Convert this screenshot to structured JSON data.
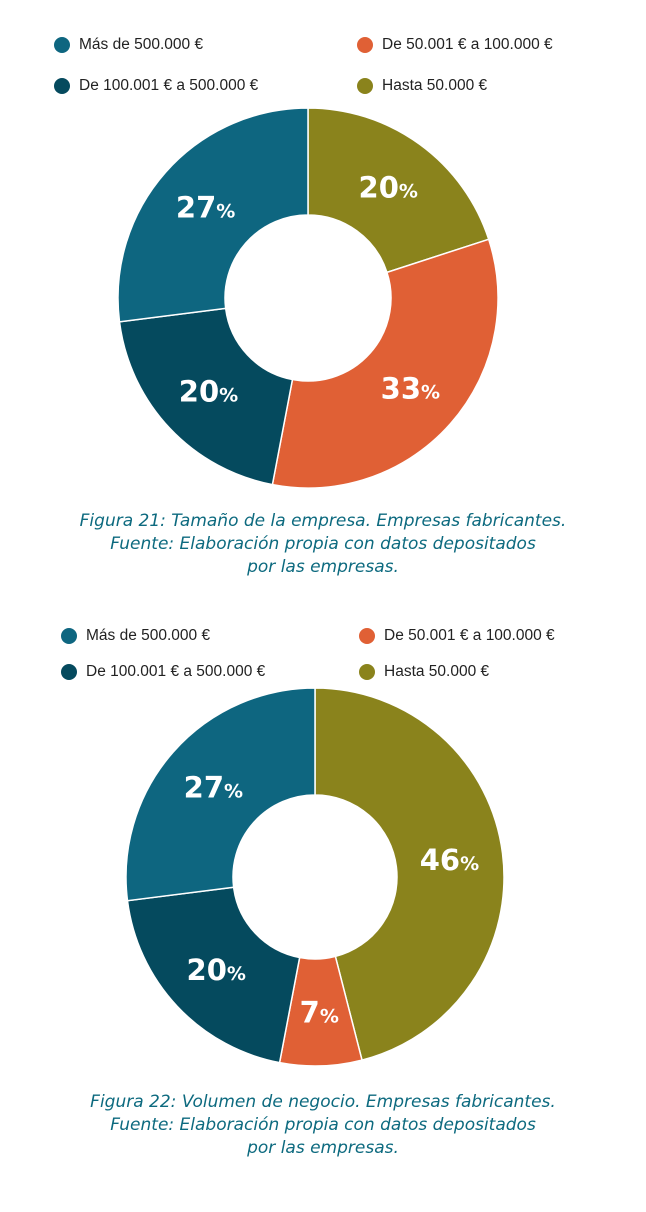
{
  "colors": {
    "mas_500k": "#0e6680",
    "de_100k_500k": "#054a5e",
    "de_50k_100k": "#e06035",
    "hasta_50k": "#8a831c"
  },
  "chart_data": [
    {
      "type": "pie",
      "donut": true,
      "legend": [
        {
          "label": "Más de 500.000 €",
          "color": "#0e6680"
        },
        {
          "label": "De 50.001 € a 100.000 €",
          "color": "#e06035"
        },
        {
          "label": "De 100.001 € a 500.000 €",
          "color": "#054a5e"
        },
        {
          "label": "Hasta 50.000 €",
          "color": "#8a831c"
        }
      ],
      "slices": [
        {
          "label": "Hasta 50.000 €",
          "value": 20,
          "display": "20",
          "color": "#8a831c"
        },
        {
          "label": "De 50.001 € a 100.000 €",
          "value": 33,
          "display": "33",
          "color": "#e06035"
        },
        {
          "label": "De 100.001 € a 500.000 €",
          "value": 20,
          "display": "20",
          "color": "#054a5e"
        },
        {
          "label": "Más de 500.000 €",
          "value": 27,
          "display": "27",
          "color": "#0e6680"
        }
      ],
      "caption": [
        "Figura 21: Tamaño de la empresa. Empresas fabricantes.",
        "Fuente: Elaboración propia con datos depositados",
        "por las empresas."
      ]
    },
    {
      "type": "pie",
      "donut": true,
      "legend": [
        {
          "label": "Más de 500.000 €",
          "color": "#0e6680"
        },
        {
          "label": "De 50.001 € a 100.000 €",
          "color": "#e06035"
        },
        {
          "label": "De 100.001 € a 500.000 €",
          "color": "#054a5e"
        },
        {
          "label": "Hasta 50.000 €",
          "color": "#8a831c"
        }
      ],
      "slices": [
        {
          "label": "Hasta 50.000 €",
          "value": 46,
          "display": "46",
          "color": "#8a831c"
        },
        {
          "label": "De 50.001 € a 100.000 €",
          "value": 7,
          "display": "7",
          "color": "#e06035"
        },
        {
          "label": "De 100.001 € a 500.000 €",
          "value": 20,
          "display": "20",
          "color": "#054a5e"
        },
        {
          "label": "Más de 500.000 €",
          "value": 27,
          "display": "27",
          "color": "#0e6680"
        }
      ],
      "caption": [
        "Figura 22: Volumen de negocio. Empresas fabricantes.",
        "Fuente: Elaboración propia con datos depositados",
        "por las empresas."
      ]
    }
  ],
  "percent_sign": "%"
}
